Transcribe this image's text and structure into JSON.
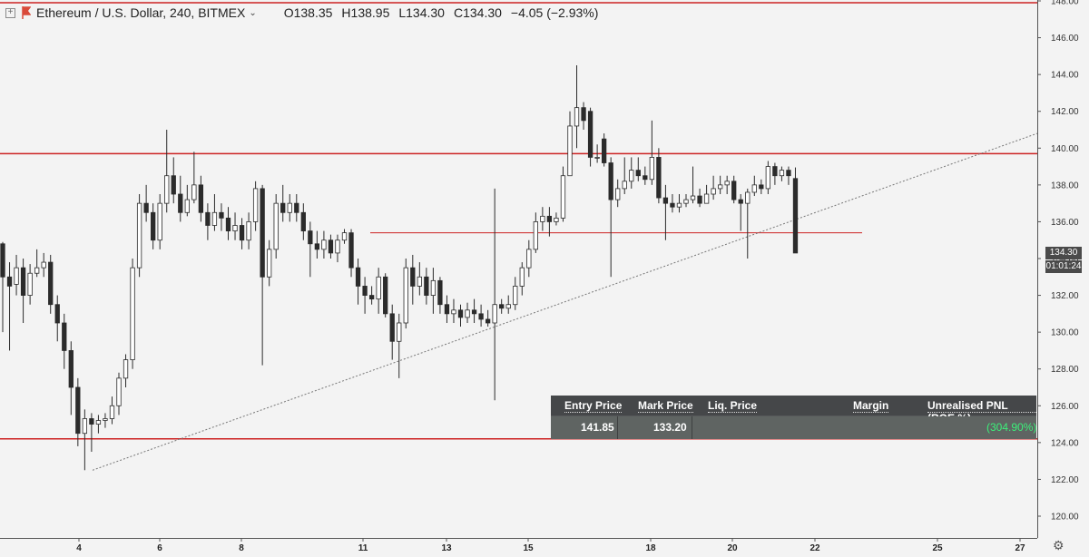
{
  "header": {
    "symbol": "Ethereum / U.S. Dollar, 240, BITMEX",
    "open": "O138.35",
    "high": "H138.95",
    "low": "L134.30",
    "close": "C134.30",
    "change": "−4.05 (−2.93%)"
  },
  "position": {
    "headers": [
      "Entry Price",
      "Mark Price",
      "Liq. Price",
      "Margin",
      "Unrealised PNL (ROE %)"
    ],
    "entry_price": "141.85",
    "mark_price": "133.20",
    "pnl": "(304.90%)"
  },
  "last_price_label": "134.30",
  "countdown": "01:01:24",
  "colors": {
    "up": "#ffffff",
    "down": "#2b2b2b",
    "wick": "#2b2b2b",
    "level_line": "#cc2222",
    "trend_line": "#777777",
    "pnl": "#3cf07a",
    "flag": "#d94a3a"
  },
  "chart_data": {
    "type": "candlestick",
    "interval": "240",
    "ylim": [
      119,
      148.5
    ],
    "y_ticks": [
      "120.00",
      "122.00",
      "124.00",
      "126.00",
      "128.00",
      "130.00",
      "132.00",
      "134.00",
      "136.00",
      "138.00",
      "140.00",
      "142.00",
      "144.00",
      "146.00",
      "148.00"
    ],
    "x_ticks": [
      "4",
      "6",
      "8",
      "11",
      "13",
      "15",
      "18",
      "20",
      "22",
      "25",
      "27"
    ],
    "candles": [
      [
        134.8,
        133.0,
        134.9,
        130.0
      ],
      [
        133.0,
        132.5,
        133.8,
        129.0
      ],
      [
        132.6,
        133.5,
        134.2,
        132.0
      ],
      [
        133.5,
        132.0,
        134.0,
        130.5
      ],
      [
        132.0,
        133.2,
        133.7,
        131.5
      ],
      [
        133.2,
        133.5,
        134.5,
        133.0
      ],
      [
        133.5,
        133.8,
        134.3,
        133.0
      ],
      [
        133.8,
        131.5,
        134.2,
        131.0
      ],
      [
        131.5,
        130.5,
        132.0,
        129.5
      ],
      [
        130.5,
        129.0,
        131.0,
        128.0
      ],
      [
        129.0,
        127.0,
        129.5,
        125.5
      ],
      [
        127.0,
        124.5,
        127.5,
        123.8
      ],
      [
        124.5,
        125.3,
        125.8,
        122.5
      ],
      [
        125.3,
        125.0,
        125.6,
        123.5
      ],
      [
        125.0,
        125.2,
        125.5,
        124.5
      ],
      [
        125.2,
        125.3,
        125.6,
        124.8
      ],
      [
        125.3,
        126.0,
        126.5,
        125.0
      ],
      [
        126.0,
        127.5,
        127.8,
        125.5
      ],
      [
        127.5,
        128.5,
        128.8,
        127.0
      ],
      [
        128.5,
        133.5,
        134.0,
        128.0
      ],
      [
        133.5,
        137.0,
        137.5,
        133.0
      ],
      [
        137.0,
        136.5,
        138.0,
        136.0
      ],
      [
        136.5,
        135.0,
        137.0,
        134.5
      ],
      [
        135.0,
        137.0,
        137.5,
        134.5
      ],
      [
        137.0,
        138.5,
        141.0,
        136.5
      ],
      [
        138.5,
        137.5,
        139.5,
        137.0
      ],
      [
        137.5,
        136.5,
        138.5,
        136.0
      ],
      [
        136.5,
        137.2,
        138.0,
        136.3
      ],
      [
        137.2,
        138.0,
        139.8,
        137.0
      ],
      [
        138.0,
        136.5,
        138.5,
        136.0
      ],
      [
        136.5,
        135.8,
        137.0,
        135.0
      ],
      [
        135.8,
        136.5,
        137.5,
        135.5
      ],
      [
        136.5,
        136.2,
        137.0,
        135.5
      ],
      [
        136.2,
        135.5,
        136.8,
        135.0
      ],
      [
        135.5,
        135.8,
        136.5,
        135.0
      ],
      [
        135.8,
        135.0,
        136.2,
        134.5
      ],
      [
        135.0,
        136.0,
        136.5,
        134.5
      ],
      [
        136.0,
        137.8,
        138.2,
        135.5
      ],
      [
        137.8,
        133.0,
        138.0,
        128.2
      ],
      [
        133.0,
        134.5,
        135.0,
        132.5
      ],
      [
        134.5,
        137.0,
        137.5,
        134.0
      ],
      [
        137.0,
        136.5,
        138.0,
        136.0
      ],
      [
        136.5,
        137.0,
        137.5,
        136.0
      ],
      [
        137.0,
        136.5,
        137.5,
        136.0
      ],
      [
        136.5,
        135.5,
        137.0,
        135.0
      ],
      [
        135.5,
        134.8,
        136.0,
        133.0
      ],
      [
        134.8,
        134.5,
        135.5,
        134.0
      ],
      [
        134.5,
        135.0,
        135.5,
        134.0
      ],
      [
        135.0,
        134.3,
        135.3,
        134.0
      ],
      [
        134.3,
        135.0,
        135.3,
        133.8
      ],
      [
        135.0,
        135.4,
        135.6,
        134.8
      ],
      [
        135.4,
        133.5,
        135.6,
        133.0
      ],
      [
        133.5,
        132.5,
        134.0,
        131.5
      ],
      [
        132.5,
        132.0,
        133.0,
        131.0
      ],
      [
        132.0,
        131.8,
        132.5,
        131.5
      ],
      [
        131.8,
        133.0,
        133.5,
        131.0
      ],
      [
        133.0,
        131.0,
        133.2,
        130.8
      ],
      [
        131.0,
        129.5,
        131.5,
        128.5
      ],
      [
        129.5,
        130.5,
        131.0,
        127.5
      ],
      [
        130.5,
        133.5,
        134.0,
        130.2
      ],
      [
        133.5,
        132.5,
        134.2,
        131.5
      ],
      [
        132.5,
        133.0,
        133.8,
        132.0
      ],
      [
        133.0,
        132.0,
        133.5,
        131.5
      ],
      [
        132.0,
        132.8,
        133.5,
        131.0
      ],
      [
        132.8,
        131.5,
        133.0,
        131.0
      ],
      [
        131.5,
        131.0,
        132.0,
        130.5
      ],
      [
        131.0,
        131.2,
        131.8,
        130.5
      ],
      [
        131.2,
        130.8,
        131.5,
        130.3
      ],
      [
        130.8,
        131.2,
        131.6,
        130.5
      ],
      [
        131.2,
        131.0,
        131.8,
        130.5
      ],
      [
        131.0,
        130.7,
        131.5,
        130.3
      ],
      [
        130.7,
        130.5,
        131.2,
        130.3
      ],
      [
        130.5,
        131.5,
        137.8,
        126.3
      ],
      [
        131.5,
        131.3,
        131.8,
        131.0
      ],
      [
        131.3,
        131.5,
        132.0,
        131.0
      ],
      [
        131.5,
        132.5,
        133.0,
        131.2
      ],
      [
        132.5,
        133.5,
        133.8,
        132.0
      ],
      [
        133.5,
        134.5,
        135.0,
        133.0
      ],
      [
        134.5,
        136.0,
        136.5,
        134.3
      ],
      [
        136.0,
        136.3,
        136.8,
        135.5
      ],
      [
        136.3,
        136.0,
        136.8,
        135.2
      ],
      [
        136.0,
        136.2,
        136.5,
        135.8
      ],
      [
        136.2,
        138.5,
        139.0,
        136.0
      ],
      [
        138.5,
        141.2,
        142.0,
        138.5
      ],
      [
        141.2,
        142.2,
        144.5,
        140.0
      ],
      [
        142.2,
        141.5,
        142.5,
        141.0
      ],
      [
        142.0,
        139.5,
        142.2,
        139.0
      ],
      [
        139.5,
        139.5,
        140.2,
        139.2
      ],
      [
        140.5,
        139.2,
        140.8,
        139.0
      ],
      [
        139.2,
        137.2,
        139.5,
        133.0
      ],
      [
        137.2,
        137.8,
        138.3,
        136.8
      ],
      [
        137.8,
        138.2,
        139.5,
        137.5
      ],
      [
        138.2,
        138.8,
        139.5,
        137.8
      ],
      [
        138.8,
        138.5,
        139.5,
        138.2
      ],
      [
        138.5,
        138.3,
        139.0,
        138.0
      ],
      [
        138.3,
        139.5,
        141.5,
        138.0
      ],
      [
        139.5,
        137.3,
        140.0,
        137.0
      ],
      [
        137.3,
        137.0,
        138.0,
        135.0
      ],
      [
        137.0,
        136.8,
        137.5,
        136.5
      ],
      [
        136.8,
        137.0,
        137.5,
        136.5
      ],
      [
        137.0,
        137.2,
        137.5,
        136.8
      ],
      [
        137.2,
        137.4,
        139.0,
        137.0
      ],
      [
        137.4,
        137.0,
        137.8,
        136.8
      ],
      [
        137.0,
        137.5,
        138.0,
        137.0
      ],
      [
        137.5,
        137.8,
        138.5,
        137.2
      ],
      [
        137.8,
        138.0,
        138.5,
        137.5
      ],
      [
        138.0,
        138.2,
        138.5,
        137.5
      ],
      [
        138.2,
        137.2,
        138.5,
        137.0
      ],
      [
        137.2,
        137.0,
        137.5,
        135.5
      ],
      [
        137.0,
        137.6,
        137.8,
        134.0
      ],
      [
        137.6,
        138.0,
        138.5,
        137.4
      ],
      [
        138.0,
        137.8,
        138.3,
        137.5
      ],
      [
        137.8,
        139.0,
        139.3,
        137.5
      ],
      [
        139.0,
        138.5,
        139.2,
        138.0
      ],
      [
        138.5,
        138.8,
        139.0,
        138.2
      ],
      [
        138.8,
        138.5,
        139.0,
        138.0
      ],
      [
        138.35,
        134.3,
        138.95,
        134.3
      ]
    ],
    "horizontal_levels": [
      147.9,
      139.7,
      124.2
    ],
    "entry_segment": {
      "price": 135.4
    },
    "trend_line": {
      "from_price": 122.5,
      "to_price": 140.8
    }
  }
}
